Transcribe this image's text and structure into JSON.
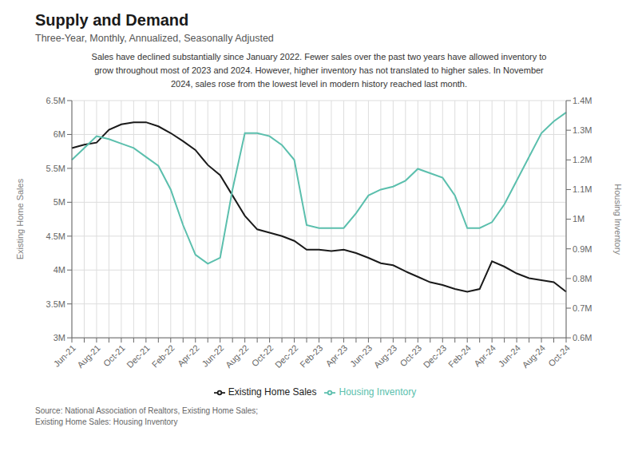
{
  "chart_data": {
    "type": "line",
    "title": "Supply and Demand",
    "subtitle": "Three-Year, Monthly, Annualized, Seasonally Adjusted",
    "annotation": "Sales have declined substantially since January 2022. Fewer sales over the past two years have allowed inventory to\ngrow throughout most of 2023 and 2024. However, higher inventory has not translated to higher sales. In November\n2024, sales rose from the lowest level in modern history reached last month.",
    "source": [
      "Source:  National Association of Realtors, Existing Home Sales;",
      "Existing Home Sales: Housing Inventory"
    ],
    "categories": [
      "Jun-21",
      null,
      "Aug-21",
      null,
      "Oct-21",
      null,
      "Dec-21",
      null,
      "Feb-22",
      null,
      "Apr-22",
      null,
      "Jun-22",
      null,
      "Aug-22",
      null,
      "Oct-22",
      null,
      "Dec-22",
      null,
      "Feb-23",
      null,
      "Apr-23",
      null,
      "Jun-23",
      null,
      "Aug-23",
      null,
      "Oct-23",
      null,
      "Dec-23",
      null,
      "Feb-24",
      null,
      "Apr-24",
      null,
      "Jun-24",
      null,
      "Aug-24",
      null,
      "Oct-24"
    ],
    "y_label": "Existing Home Sales",
    "y2_label": "Housing Inventory",
    "series": [
      {
        "name": "Existing Home Sales",
        "color": "#1a1a1a",
        "values": [
          5.8,
          5.85,
          5.88,
          6.07,
          6.15,
          6.18,
          6.18,
          6.12,
          6.02,
          5.9,
          5.77,
          5.55,
          5.4,
          5.1,
          4.8,
          4.6,
          4.55,
          4.5,
          4.43,
          4.3,
          4.3,
          4.28,
          4.3,
          4.25,
          4.18,
          4.1,
          4.07,
          3.98,
          3.9,
          3.82,
          3.78,
          3.72,
          3.68,
          3.72,
          4.13,
          4.05,
          3.95,
          3.88,
          3.85,
          3.82,
          3.68
        ]
      },
      {
        "name": "Housing Inventory",
        "color": "#5bbfad",
        "axis": "y2",
        "values": [
          1.2,
          1.24,
          1.28,
          1.27,
          1.255,
          1.24,
          1.21,
          1.18,
          1.1,
          0.98,
          0.88,
          0.85,
          0.87,
          1.1,
          1.29,
          1.29,
          1.28,
          1.25,
          1.2,
          0.98,
          0.97,
          0.97,
          0.97,
          1.02,
          1.08,
          1.1,
          1.11,
          1.13,
          1.17,
          1.155,
          1.14,
          1.08,
          0.97,
          0.97,
          0.99,
          1.05,
          1.13,
          1.21,
          1.29,
          1.33,
          1.36
        ]
      }
    ],
    "ylim": [
      3.0,
      6.5
    ],
    "yticks": [
      {
        "value": 3.0,
        "label": "3M"
      },
      {
        "value": 3.5,
        "label": "3.5M"
      },
      {
        "value": 4.0,
        "label": "4M"
      },
      {
        "value": 4.5,
        "label": "4.5M"
      },
      {
        "value": 5.0,
        "label": "5M"
      },
      {
        "value": 5.5,
        "label": "5.5M"
      },
      {
        "value": 6.0,
        "label": "6M"
      },
      {
        "value": 6.5,
        "label": "6.5M"
      }
    ],
    "y2lim": [
      0.6,
      1.4
    ],
    "y2ticks": [
      {
        "value": 0.6,
        "label": "0.6M"
      },
      {
        "value": 0.7,
        "label": "0.7M"
      },
      {
        "value": 0.8,
        "label": "0.8M"
      },
      {
        "value": 0.9,
        "label": "0.9M"
      },
      {
        "value": 1.0,
        "label": "1M"
      },
      {
        "value": 1.1,
        "label": "1.1M"
      },
      {
        "value": 1.2,
        "label": "1.2M"
      },
      {
        "value": 1.3,
        "label": "1.3M"
      },
      {
        "value": 1.4,
        "label": "1.4M"
      }
    ],
    "grid": true,
    "legend": "bottom"
  }
}
